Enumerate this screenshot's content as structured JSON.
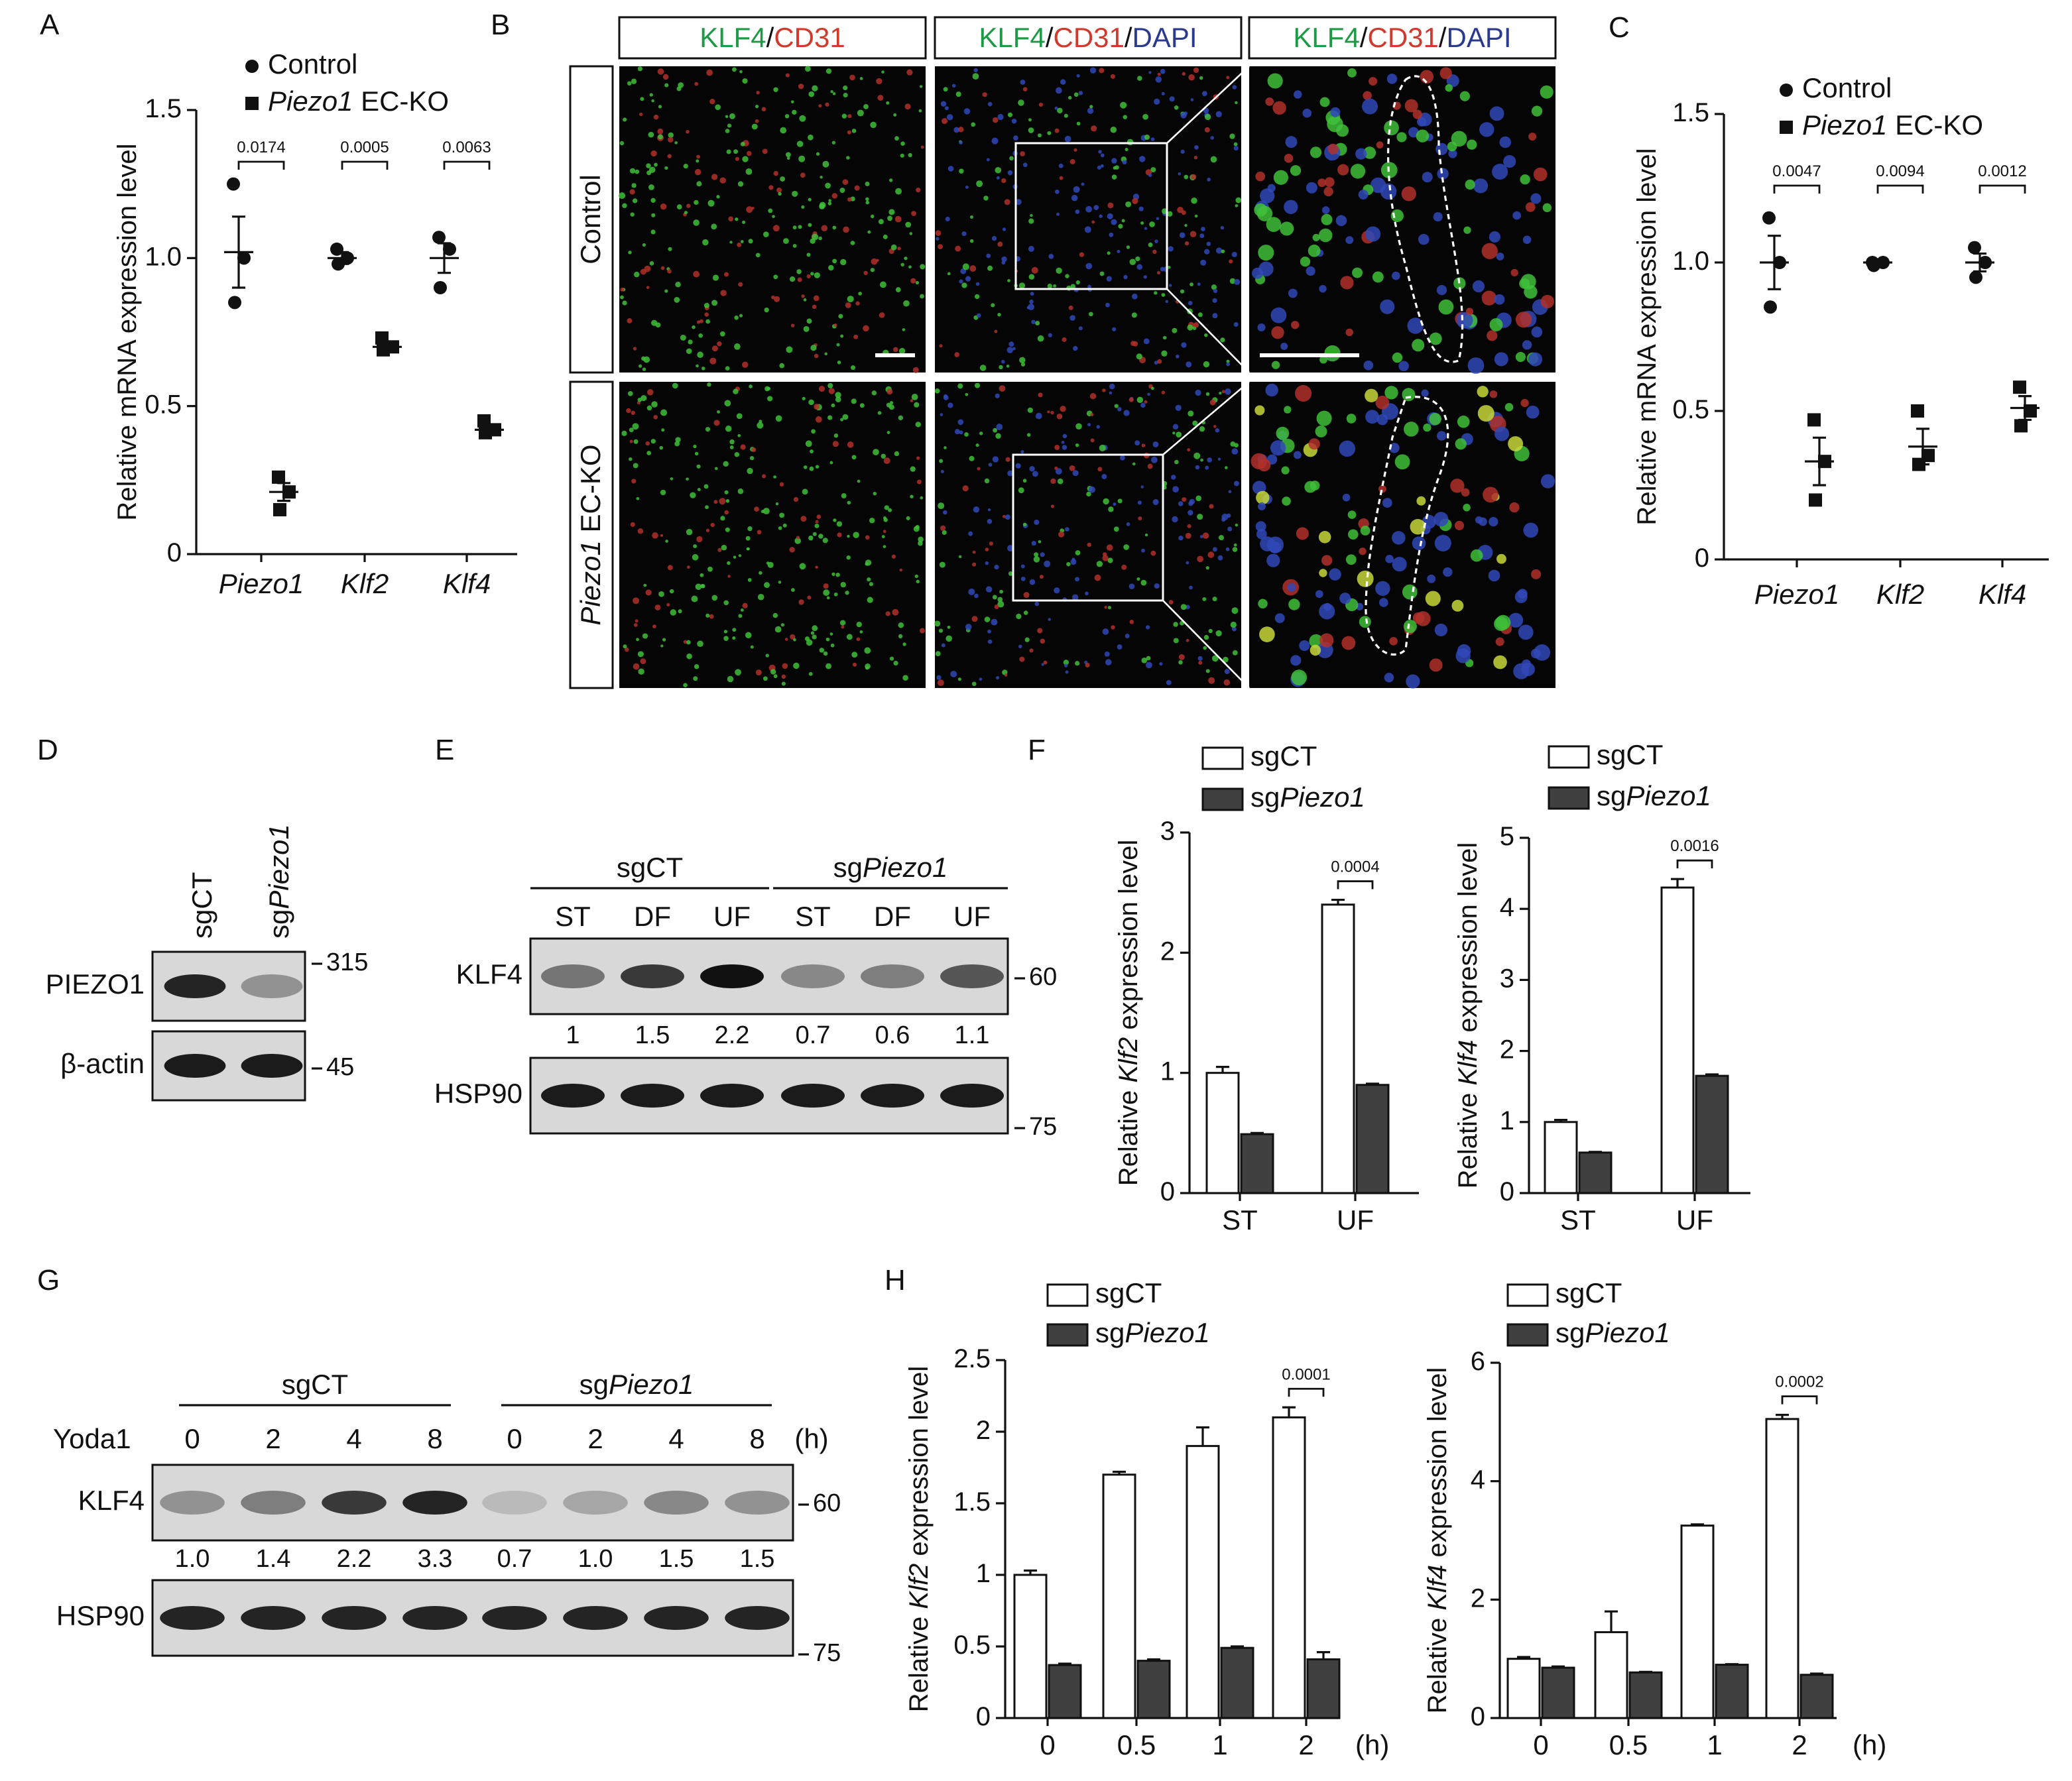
{
  "panel_labels": [
    "A",
    "B",
    "C",
    "D",
    "E",
    "F",
    "G",
    "H"
  ],
  "chart_data": [
    {
      "type": "dot",
      "ylabel": "Relative mRNA expression level",
      "categories": [
        {
          "text": "Piezo1",
          "italic": true
        },
        {
          "text": "Klf2",
          "italic": true
        },
        {
          "text": "Klf4",
          "italic": true
        }
      ],
      "series": [
        {
          "name": "Control",
          "marker": "circle",
          "color": "#111111",
          "points": [
            [
              1.25,
              1.0,
              0.85
            ],
            [
              1.03,
              1.0,
              0.98
            ],
            [
              1.07,
              1.03,
              0.9
            ]
          ],
          "values": [
            1.02,
            1.0,
            1.0
          ],
          "errors": [
            0.12,
            0.02,
            0.05
          ]
        },
        {
          "name": [
            {
              "text": "Piezo1",
              "italic": true
            },
            " EC-KO"
          ],
          "marker": "square",
          "color": "#111111",
          "points": [
            [
              0.26,
              0.21,
              0.15
            ],
            [
              0.73,
              0.7,
              0.69
            ],
            [
              0.45,
              0.42,
              0.41
            ]
          ],
          "values": [
            0.21,
            0.7,
            0.42
          ],
          "errors": [
            0.03,
            0.01,
            0.01
          ]
        }
      ],
      "ylim": [
        0,
        1.5
      ],
      "yticks": [
        0,
        0.5,
        {
          "value": 1,
          "label": "1.0"
        },
        1.5
      ],
      "pvalues": [
        "0.0174",
        "0.0005",
        "0.0063"
      ]
    },
    {
      "type": "dot",
      "ylabel": "Relative mRNA expression level",
      "categories": [
        {
          "text": "Piezo1",
          "italic": true
        },
        {
          "text": "Klf2",
          "italic": true
        },
        {
          "text": "Klf4",
          "italic": true
        }
      ],
      "series": [
        {
          "name": "Control",
          "marker": "circle",
          "color": "#111111",
          "points": [
            [
              1.15,
              1.0,
              0.85
            ],
            [
              1.0,
              1.0,
              0.99
            ],
            [
              1.05,
              1.0,
              0.95
            ]
          ],
          "values": [
            1.0,
            1.0,
            1.0
          ],
          "errors": [
            0.09,
            0.01,
            0.03
          ]
        },
        {
          "name": [
            {
              "text": "Piezo1",
              "italic": true
            },
            " EC-KO"
          ],
          "marker": "square",
          "color": "#111111",
          "points": [
            [
              0.47,
              0.33,
              0.2
            ],
            [
              0.5,
              0.35,
              0.32
            ],
            [
              0.58,
              0.5,
              0.45
            ]
          ],
          "values": [
            0.33,
            0.38,
            0.51
          ],
          "errors": [
            0.08,
            0.06,
            0.04
          ]
        }
      ],
      "ylim": [
        0,
        1.5
      ],
      "yticks": [
        0,
        0.5,
        {
          "value": 1,
          "label": "1.0"
        },
        1.5
      ],
      "pvalues": [
        "0.0047",
        "0.0094",
        "0.0012"
      ]
    },
    {
      "type": "bar",
      "ylabel": [
        "Relative ",
        {
          "text": "Klf2",
          "italic": true
        },
        " expression level"
      ],
      "categories": [
        "ST",
        "UF"
      ],
      "series": [
        {
          "name": "sgCT",
          "color": "#ffffff",
          "values": [
            1.0,
            2.4
          ],
          "errors": [
            0.05,
            0.04
          ]
        },
        {
          "name": [
            "sg",
            {
              "text": "Piezo1",
              "italic": true
            }
          ],
          "color": "#404040",
          "values": [
            0.49,
            0.9
          ],
          "errors": [
            0.01,
            0.01
          ]
        }
      ],
      "ylim": [
        0,
        3
      ],
      "yticks": [
        0,
        1,
        2,
        3
      ],
      "pvalues": [
        null,
        "0.0004"
      ]
    },
    {
      "type": "bar",
      "ylabel": [
        "Relative ",
        {
          "text": "Klf4",
          "italic": true
        },
        " expression level"
      ],
      "categories": [
        "ST",
        "UF"
      ],
      "series": [
        {
          "name": "sgCT",
          "color": "#ffffff",
          "values": [
            1.0,
            4.3
          ],
          "errors": [
            0.03,
            0.12
          ]
        },
        {
          "name": [
            "sg",
            {
              "text": "Piezo1",
              "italic": true
            }
          ],
          "color": "#404040",
          "values": [
            0.57,
            1.65
          ],
          "errors": [
            0.01,
            0.02
          ]
        }
      ],
      "ylim": [
        0,
        5
      ],
      "yticks": [
        0,
        1,
        2,
        3,
        4,
        5
      ],
      "pvalues": [
        null,
        "0.0016"
      ]
    },
    {
      "type": "bar",
      "ylabel": [
        "Relative ",
        {
          "text": "Klf2",
          "italic": true
        },
        " expression level"
      ],
      "categories": [
        "0",
        "0.5",
        "1",
        "2"
      ],
      "x_unit": "(h)",
      "series": [
        {
          "name": "sgCT",
          "color": "#ffffff",
          "values": [
            1.0,
            1.7,
            1.9,
            2.1
          ],
          "errors": [
            0.03,
            0.02,
            0.13,
            0.07
          ]
        },
        {
          "name": [
            "sg",
            {
              "text": "Piezo1",
              "italic": true
            }
          ],
          "color": "#404040",
          "values": [
            0.37,
            0.4,
            0.49,
            0.41
          ],
          "errors": [
            0.01,
            0.01,
            0.01,
            0.05
          ]
        }
      ],
      "ylim": [
        0,
        2.5
      ],
      "yticks": [
        0,
        0.5,
        1,
        1.5,
        2,
        2.5
      ],
      "pvalues": [
        null,
        null,
        null,
        "0.0001"
      ]
    },
    {
      "type": "bar",
      "ylabel": [
        "Relative ",
        {
          "text": "Klf4",
          "italic": true
        },
        " expression level"
      ],
      "categories": [
        "0",
        "0.5",
        "1",
        "2"
      ],
      "x_unit": "(h)",
      "series": [
        {
          "name": "sgCT",
          "color": "#ffffff",
          "values": [
            1.0,
            1.45,
            3.25,
            5.05
          ],
          "errors": [
            0.03,
            0.35,
            0.02,
            0.07
          ]
        },
        {
          "name": [
            "sg",
            {
              "text": "Piezo1",
              "italic": true
            }
          ],
          "color": "#404040",
          "values": [
            0.85,
            0.77,
            0.9,
            0.73
          ],
          "errors": [
            0.02,
            0.01,
            0.01,
            0.02
          ]
        }
      ],
      "ylim": [
        0,
        6
      ],
      "yticks": [
        0,
        2,
        4,
        6
      ],
      "pvalues": [
        null,
        null,
        null,
        "0.0002"
      ]
    }
  ],
  "micrographs": {
    "columns": [
      [
        {
          "text": "KLF4",
          "color": "#1e9a46"
        },
        "/",
        {
          "text": "CD31",
          "color": "#d0392b"
        }
      ],
      [
        {
          "text": "KLF4",
          "color": "#1e9a46"
        },
        "/",
        {
          "text": "CD31",
          "color": "#d0392b"
        },
        "/",
        {
          "text": "DAPI",
          "color": "#2b3a8c"
        }
      ],
      [
        {
          "text": "KLF4",
          "color": "#1e9a46"
        },
        "/",
        {
          "text": "CD31",
          "color": "#d0392b"
        },
        "/",
        {
          "text": "DAPI",
          "color": "#2b3a8c"
        }
      ]
    ],
    "rows": [
      "Control",
      [
        {
          "text": "Piezo1",
          "italic": true
        },
        " EC-KO"
      ]
    ]
  },
  "blots": [
    {
      "lanes": [
        "sgCT",
        [
          "sg",
          {
            "text": "Piezo1",
            "italic": true
          }
        ]
      ],
      "rows": [
        "PIEZO1",
        "β-actin"
      ],
      "markers": [
        "315",
        "45"
      ]
    },
    {
      "groups": [
        "sgCT",
        [
          "sg",
          {
            "text": "Piezo1",
            "italic": true
          }
        ]
      ],
      "lanes": [
        "ST",
        "DF",
        "UF",
        "ST",
        "DF",
        "UF"
      ],
      "rows": [
        "KLF4",
        "HSP90"
      ],
      "quantification": [
        "1",
        "1.5",
        "2.2",
        "0.7",
        "0.6",
        "1.1"
      ],
      "markers": [
        "60",
        "75"
      ]
    },
    {
      "groups": [
        "sgCT",
        [
          "sg",
          {
            "text": "Piezo1",
            "italic": true
          }
        ]
      ],
      "lane_header": "Yoda1",
      "lanes": [
        "0",
        "2",
        "4",
        "8",
        "0",
        "2",
        "4",
        "8"
      ],
      "unit": "(h)",
      "rows": [
        "KLF4",
        "HSP90"
      ],
      "quantification": [
        "1.0",
        "1.4",
        "2.2",
        "3.3",
        "0.7",
        "1.0",
        "1.5",
        "1.5"
      ],
      "markers": [
        "60",
        "75"
      ]
    }
  ]
}
